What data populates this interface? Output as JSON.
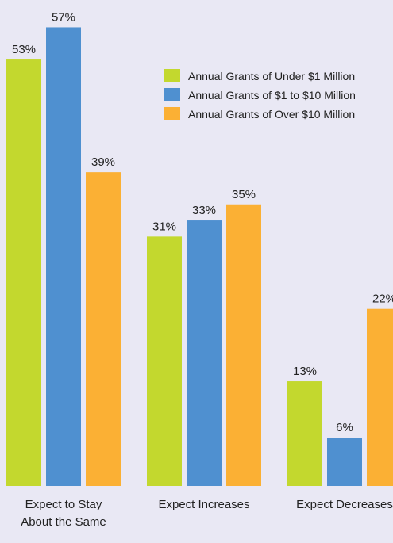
{
  "chart_data": {
    "type": "bar",
    "categories": [
      "Expect to Stay About the Same",
      "Expect Increases",
      "Expect Decreases"
    ],
    "series": [
      {
        "name": "Annual Grants of Under $1 Million",
        "color": "#c3d82e",
        "values": [
          53,
          31,
          13
        ],
        "value_labels": [
          "53%",
          "31%",
          "13%"
        ]
      },
      {
        "name": "Annual Grants of $1 to $10 Million",
        "color": "#4f90d0",
        "values": [
          57,
          33,
          6
        ],
        "value_labels": [
          "57%",
          "33%",
          "6%"
        ]
      },
      {
        "name": "Annual Grants of Over $10 Million",
        "color": "#fbb034",
        "values": [
          39,
          35,
          22
        ],
        "value_labels": [
          "39%",
          "35%",
          "22%"
        ]
      }
    ],
    "legend": "upper right"
  }
}
